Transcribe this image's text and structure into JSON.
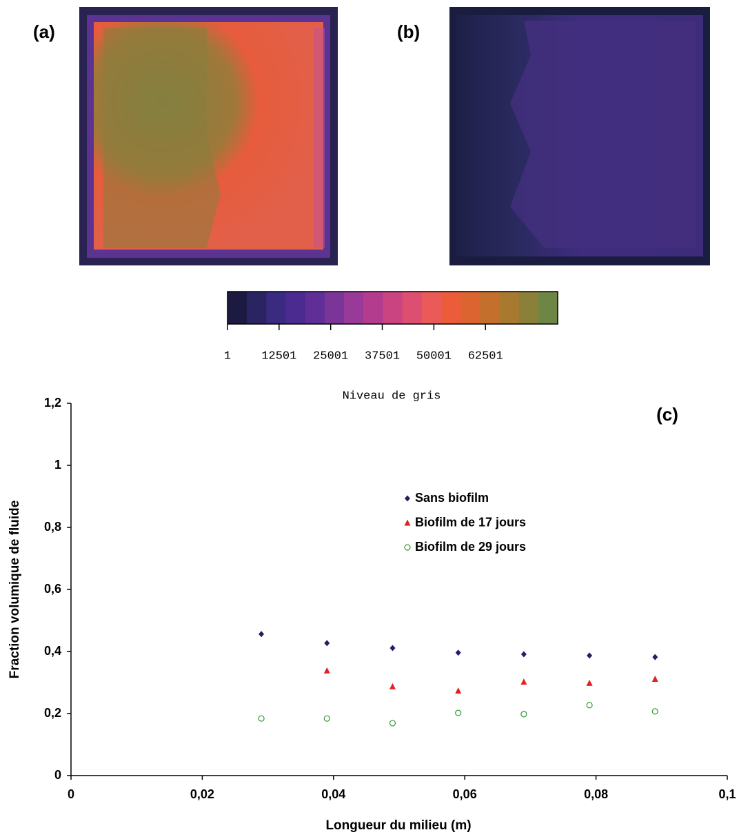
{
  "panels": {
    "a": "(a)",
    "b": "(b)"
  },
  "colorbar": {
    "label": "Niveau de gris",
    "lim": [
      1,
      80001
    ],
    "ticks": [
      1,
      12501,
      25001,
      37501,
      50001,
      62501
    ],
    "colors": [
      "#1c1a40",
      "#2a2462",
      "#3a2a80",
      "#4b2b8f",
      "#5f2e96",
      "#7b3598",
      "#9a3a98",
      "#b43c8e",
      "#ca4482",
      "#dd4f70",
      "#ea5a58",
      "#ec5c3a",
      "#dc6430",
      "#c4702c",
      "#a87a30",
      "#8a8038",
      "#6e8644"
    ]
  },
  "chart_data": {
    "type": "scatter",
    "title": "(c)",
    "xlabel": "Longueur du milieu (m)",
    "ylabel": "Fraction volumique de fluide",
    "xlim": [
      0,
      0.1
    ],
    "ylim": [
      0,
      1.2
    ],
    "xticks": [
      0,
      {
        "value": 0.02,
        "label": "0,02"
      },
      {
        "value": 0.04,
        "label": "0,04"
      },
      {
        "value": 0.06,
        "label": "0,06"
      },
      {
        "value": 0.08,
        "label": "0,08"
      },
      {
        "value": 0.1,
        "label": "0,1"
      }
    ],
    "yticks": [
      0,
      {
        "value": 0.2,
        "label": "0,2"
      },
      {
        "value": 0.4,
        "label": "0,4"
      },
      {
        "value": 0.6,
        "label": "0,6"
      },
      {
        "value": 0.8,
        "label": "0,8"
      },
      1,
      {
        "value": 1.2,
        "label": "1,2"
      }
    ],
    "series": [
      {
        "name": "Sans biofilm",
        "color": "#1f1f6b",
        "marker": "diamond",
        "x": [
          0.029,
          0.039,
          0.049,
          0.059,
          0.069,
          0.079,
          0.089
        ],
        "values": [
          0.456,
          0.427,
          0.411,
          0.396,
          0.391,
          0.387,
          0.382
        ]
      },
      {
        "name": "Biofilm de 17 jours",
        "color": "#e32020",
        "marker": "triangle",
        "x": [
          0.039,
          0.049,
          0.059,
          0.069,
          0.079,
          0.089
        ],
        "values": [
          0.338,
          0.287,
          0.273,
          0.302,
          0.298,
          0.311
        ]
      },
      {
        "name": "Biofilm de 29 jours",
        "color": "#2e9a2e",
        "marker": "circle",
        "x": [
          0.029,
          0.039,
          0.049,
          0.059,
          0.069,
          0.079,
          0.089
        ],
        "values": [
          0.184,
          0.184,
          0.169,
          0.202,
          0.198,
          0.227,
          0.207
        ]
      }
    ]
  }
}
